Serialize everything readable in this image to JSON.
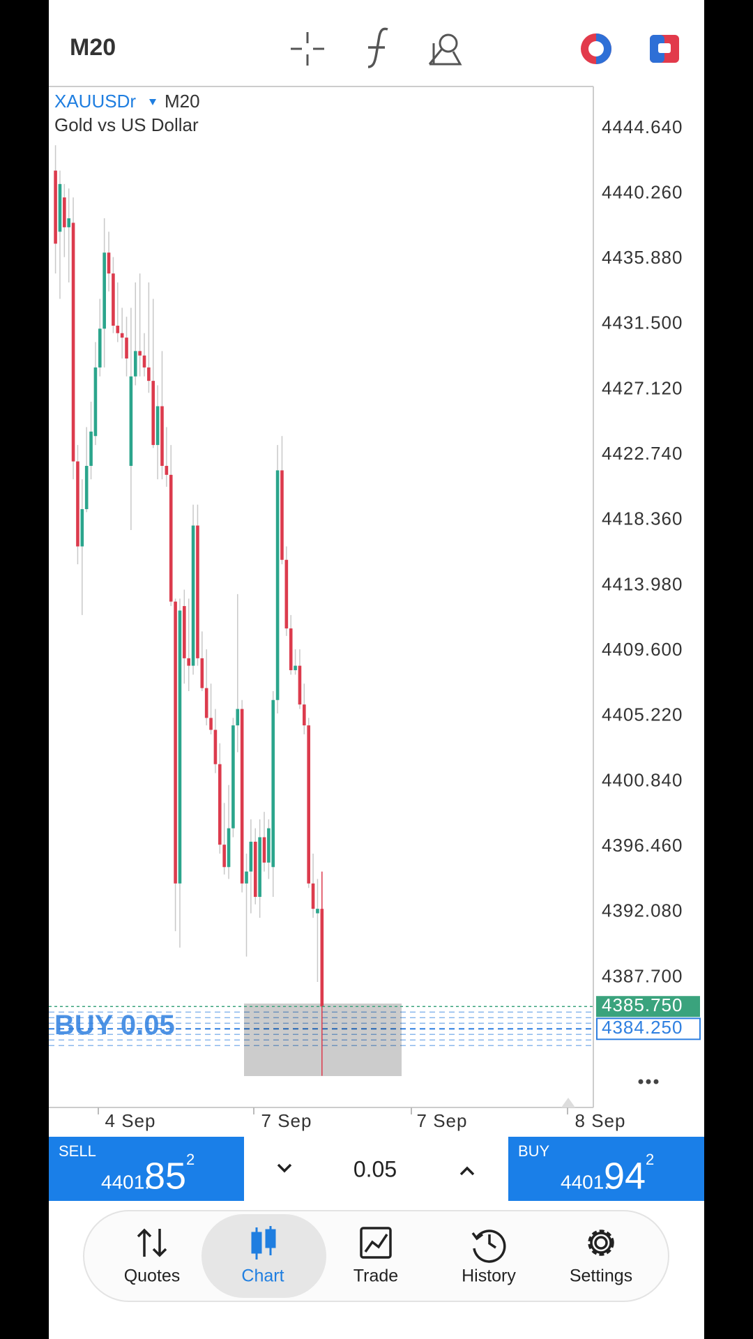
{
  "toolbar": {
    "timeframe": "M20"
  },
  "chart_data": {
    "type": "candlestick",
    "symbol": "XAUUSDr",
    "timeframe": "M20",
    "description": "Gold vs US Dollar",
    "up_color": "#2ba58c",
    "down_color": "#dc3b4d",
    "grid": false,
    "ylim": [
      4378.98,
      4447.44
    ],
    "yticks": [
      {
        "value": 4444.64,
        "label": "4444.640"
      },
      {
        "value": 4440.26,
        "label": "4440.260"
      },
      {
        "value": 4435.88,
        "label": "4435.880"
      },
      {
        "value": 4431.5,
        "label": "4431.500"
      },
      {
        "value": 4427.12,
        "label": "4427.120"
      },
      {
        "value": 4422.74,
        "label": "4422.740"
      },
      {
        "value": 4418.36,
        "label": "4418.360"
      },
      {
        "value": 4413.98,
        "label": "4413.980"
      },
      {
        "value": 4409.6,
        "label": "4409.600"
      },
      {
        "value": 4405.22,
        "label": "4405.220"
      },
      {
        "value": 4400.84,
        "label": "4400.840"
      },
      {
        "value": 4396.46,
        "label": "4396.460"
      },
      {
        "value": 4392.08,
        "label": "4392.080"
      },
      {
        "value": 4387.7,
        "label": "4387.700"
      }
    ],
    "x_labels": [
      "4 Sep",
      "7 Sep",
      "7 Sep",
      "8 Sep"
    ],
    "open": [
      4441.8,
      4437.7,
      4440.0,
      4438.0,
      4438.3,
      4422.3,
      4416.6,
      4419.1,
      4422.0,
      4424.0,
      4428.6,
      4431.2,
      4436.3,
      4434.9,
      4431.4,
      4430.9,
      4430.6,
      4422.0,
      4428.0,
      4429.7,
      4429.4,
      4428.6,
      4427.7,
      4423.4,
      4426.0,
      4422.0,
      4421.4,
      4412.9,
      4394.0,
      4412.6,
      4409.1,
      4408.6,
      4418.0,
      4409.1,
      4407.1,
      4405.1,
      4404.3,
      4402.0,
      4396.6,
      4395.1,
      4397.7,
      4404.6,
      4405.7,
      4394.0,
      4394.8,
      4396.8,
      4393.1,
      4397.1,
      4395.4,
      4395.1,
      4406.3,
      4421.7,
      4415.7,
      4411.1,
      4408.3,
      4408.6,
      4406.0,
      4404.6,
      4394.0,
      4392.0,
      4392.3
    ],
    "high": [
      4443.5,
      4441.8,
      4440.9,
      4440.6,
      4440.0,
      4423.4,
      4421.1,
      4424.6,
      4426.3,
      4430.3,
      4433.2,
      4438.6,
      4437.7,
      4436.0,
      4434.3,
      4432.6,
      4432.0,
      4432.6,
      4434.3,
      4434.9,
      4430.9,
      4434.3,
      4433.2,
      4427.4,
      4429.7,
      4424.6,
      4423.4,
      4413.1,
      4413.1,
      4413.7,
      4413.1,
      4419.4,
      4419.4,
      4410.9,
      4409.7,
      4407.4,
      4405.7,
      4403.4,
      4399.4,
      4400.6,
      4405.1,
      4413.4,
      4406.3,
      4396.0,
      4398.3,
      4397.7,
      4398.3,
      4398.8,
      4398.3,
      4406.9,
      4423.4,
      4424.0,
      4416.6,
      4412.0,
      4409.7,
      4409.7,
      4407.4,
      4405.1,
      4396.0,
      4394.3,
      4394.8
    ],
    "low": [
      4434.9,
      4433.2,
      4436.0,
      4434.3,
      4421.1,
      4415.4,
      4412.0,
      4418.9,
      4421.1,
      4423.4,
      4428.0,
      4428.6,
      4433.7,
      4430.9,
      4430.3,
      4429.2,
      4428.0,
      4417.7,
      4427.4,
      4428.0,
      4428.0,
      4426.9,
      4423.2,
      4421.1,
      4421.1,
      4420.6,
      4412.6,
      4390.8,
      4389.7,
      4407.4,
      4406.9,
      4408.0,
      4408.6,
      4406.9,
      4404.6,
      4404.0,
      4401.4,
      4396.0,
      4394.6,
      4394.3,
      4397.1,
      4402.8,
      4393.4,
      4389.1,
      4392.0,
      4392.6,
      4391.7,
      4394.8,
      4394.3,
      4393.1,
      4405.4,
      4415.4,
      4410.6,
      4408.0,
      4408.0,
      4405.7,
      4404.0,
      4393.7,
      4391.7,
      4387.4,
      4381.1
    ],
    "close": [
      4436.9,
      4440.9,
      4438.0,
      4438.6,
      4422.3,
      4416.6,
      4419.1,
      4422.0,
      4424.3,
      4428.6,
      4431.2,
      4436.3,
      4434.9,
      4431.4,
      4430.9,
      4430.6,
      4429.2,
      4428.0,
      4429.7,
      4429.4,
      4428.6,
      4427.7,
      4423.4,
      4426.0,
      4422.0,
      4421.4,
      4412.9,
      4394.0,
      4412.3,
      4409.1,
      4408.6,
      4418.0,
      4409.1,
      4407.1,
      4405.1,
      4404.3,
      4402.0,
      4396.6,
      4395.1,
      4397.7,
      4404.6,
      4405.7,
      4394.0,
      4394.8,
      4396.8,
      4393.1,
      4397.1,
      4395.4,
      4397.7,
      4406.3,
      4421.7,
      4415.7,
      4411.1,
      4408.3,
      4408.6,
      4406.0,
      4404.6,
      4394.0,
      4392.3,
      4392.3,
      4385.75
    ],
    "current_price": {
      "value": 4385.75,
      "label": "4385.750",
      "color": "#3aa37d"
    },
    "order_line": {
      "label": "BUY 0.05",
      "value": 4384.25,
      "price_label": "4384.250",
      "color": "#2e7fe0"
    }
  },
  "trade_panel": {
    "sell": {
      "label": "SELL",
      "price_prefix": "4401.",
      "price_big": "85",
      "price_sup": "2"
    },
    "volume": "0.05",
    "buy": {
      "label": "BUY",
      "price_prefix": "4401.",
      "price_big": "94",
      "price_sup": "2"
    }
  },
  "nav": [
    {
      "label": "Quotes"
    },
    {
      "label": "Chart"
    },
    {
      "label": "Trade"
    },
    {
      "label": "History"
    },
    {
      "label": "Settings"
    }
  ]
}
